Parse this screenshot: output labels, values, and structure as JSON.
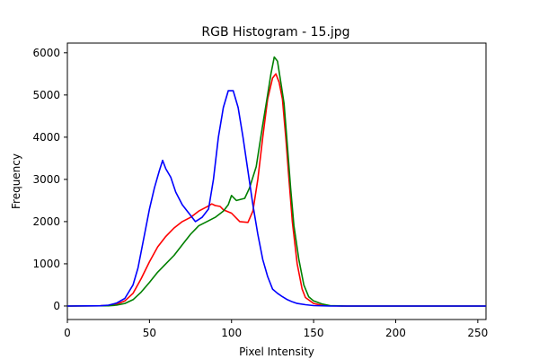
{
  "chart_data": {
    "type": "line",
    "title": "RGB Histogram - 15.jpg",
    "xlabel": "Pixel Intensity",
    "ylabel": "Frequency",
    "xlim": [
      0,
      255
    ],
    "ylim": [
      -320,
      6230
    ],
    "xticks": [
      0,
      50,
      100,
      150,
      200,
      250
    ],
    "yticks": [
      0,
      1000,
      2000,
      3000,
      4000,
      5000,
      6000
    ],
    "grid": false,
    "series": [
      {
        "color": "#ff0000",
        "points": [
          [
            0,
            0
          ],
          [
            20,
            5
          ],
          [
            25,
            15
          ],
          [
            30,
            40
          ],
          [
            35,
            120
          ],
          [
            40,
            300
          ],
          [
            45,
            650
          ],
          [
            50,
            1050
          ],
          [
            55,
            1400
          ],
          [
            60,
            1650
          ],
          [
            65,
            1850
          ],
          [
            70,
            2000
          ],
          [
            75,
            2100
          ],
          [
            80,
            2250
          ],
          [
            85,
            2350
          ],
          [
            88,
            2420
          ],
          [
            90,
            2380
          ],
          [
            93,
            2360
          ],
          [
            95,
            2280
          ],
          [
            100,
            2200
          ],
          [
            105,
            2000
          ],
          [
            110,
            1980
          ],
          [
            113,
            2250
          ],
          [
            116,
            3000
          ],
          [
            119,
            4000
          ],
          [
            122,
            4900
          ],
          [
            125,
            5400
          ],
          [
            127,
            5500
          ],
          [
            129,
            5300
          ],
          [
            131,
            4900
          ],
          [
            133,
            4000
          ],
          [
            135,
            3000
          ],
          [
            137,
            2000
          ],
          [
            140,
            1000
          ],
          [
            143,
            400
          ],
          [
            145,
            200
          ],
          [
            150,
            60
          ],
          [
            155,
            15
          ],
          [
            160,
            5
          ],
          [
            170,
            0
          ],
          [
            255,
            0
          ]
        ]
      },
      {
        "color": "#008000",
        "points": [
          [
            0,
            0
          ],
          [
            25,
            5
          ],
          [
            30,
            20
          ],
          [
            35,
            60
          ],
          [
            40,
            150
          ],
          [
            45,
            330
          ],
          [
            50,
            560
          ],
          [
            55,
            800
          ],
          [
            60,
            1000
          ],
          [
            65,
            1200
          ],
          [
            70,
            1450
          ],
          [
            75,
            1700
          ],
          [
            80,
            1900
          ],
          [
            85,
            2000
          ],
          [
            90,
            2100
          ],
          [
            95,
            2250
          ],
          [
            98,
            2400
          ],
          [
            100,
            2620
          ],
          [
            103,
            2500
          ],
          [
            108,
            2550
          ],
          [
            111,
            2800
          ],
          [
            115,
            3300
          ],
          [
            119,
            4300
          ],
          [
            122,
            5000
          ],
          [
            124,
            5500
          ],
          [
            126,
            5900
          ],
          [
            128,
            5800
          ],
          [
            130,
            5300
          ],
          [
            132,
            4800
          ],
          [
            134,
            3800
          ],
          [
            136,
            2800
          ],
          [
            138,
            1900
          ],
          [
            141,
            1100
          ],
          [
            144,
            500
          ],
          [
            147,
            220
          ],
          [
            150,
            120
          ],
          [
            155,
            50
          ],
          [
            160,
            10
          ],
          [
            170,
            0
          ],
          [
            255,
            0
          ]
        ]
      },
      {
        "color": "#0000ff",
        "points": [
          [
            0,
            0
          ],
          [
            20,
            5
          ],
          [
            25,
            20
          ],
          [
            30,
            70
          ],
          [
            35,
            180
          ],
          [
            40,
            500
          ],
          [
            43,
            900
          ],
          [
            46,
            1500
          ],
          [
            50,
            2300
          ],
          [
            53,
            2800
          ],
          [
            56,
            3200
          ],
          [
            58,
            3450
          ],
          [
            60,
            3250
          ],
          [
            63,
            3050
          ],
          [
            66,
            2700
          ],
          [
            70,
            2400
          ],
          [
            74,
            2200
          ],
          [
            78,
            2000
          ],
          [
            82,
            2100
          ],
          [
            86,
            2300
          ],
          [
            89,
            3000
          ],
          [
            92,
            4000
          ],
          [
            95,
            4700
          ],
          [
            98,
            5100
          ],
          [
            101,
            5100
          ],
          [
            104,
            4700
          ],
          [
            107,
            4000
          ],
          [
            110,
            3200
          ],
          [
            113,
            2400
          ],
          [
            116,
            1700
          ],
          [
            119,
            1100
          ],
          [
            122,
            700
          ],
          [
            125,
            400
          ],
          [
            128,
            300
          ],
          [
            131,
            220
          ],
          [
            134,
            150
          ],
          [
            137,
            100
          ],
          [
            140,
            60
          ],
          [
            145,
            30
          ],
          [
            150,
            10
          ],
          [
            160,
            0
          ],
          [
            255,
            0
          ]
        ]
      }
    ]
  }
}
